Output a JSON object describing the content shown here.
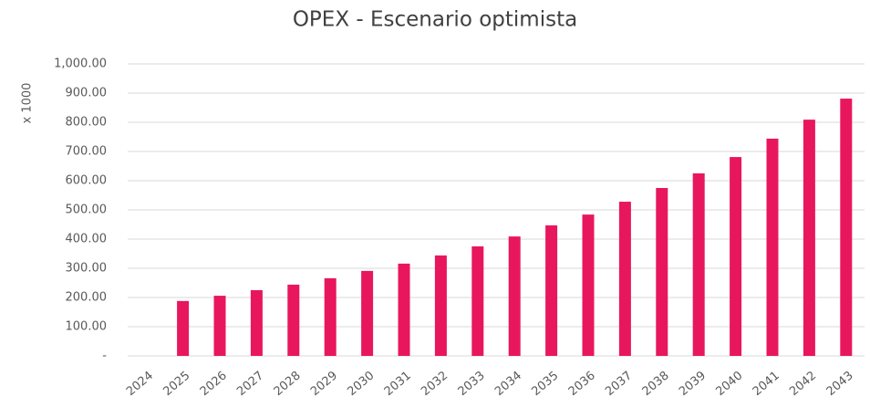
{
  "chart_data": {
    "type": "bar",
    "title": "OPEX - Escenario optimista",
    "y_label": "x 1000",
    "categories": [
      "2024",
      "2025",
      "2026",
      "2027",
      "2028",
      "2029",
      "2030",
      "2031",
      "2032",
      "2033",
      "2034",
      "2035",
      "2036",
      "2037",
      "2038",
      "2039",
      "2040",
      "2041",
      "2042",
      "2043"
    ],
    "values": [
      0,
      188,
      206,
      225,
      244,
      266,
      291,
      316,
      344,
      375,
      409,
      447,
      484,
      528,
      575,
      625,
      681,
      744,
      809,
      881
    ],
    "color": "#e8175d",
    "ylim": [
      0,
      1000
    ],
    "yticks": [
      {
        "value": 0,
        "label": "-"
      },
      {
        "value": 100,
        "label": "100.00"
      },
      {
        "value": 200,
        "label": "200.00"
      },
      {
        "value": 300,
        "label": "300.00"
      },
      {
        "value": 400,
        "label": "400.00"
      },
      {
        "value": 500,
        "label": "500.00"
      },
      {
        "value": 600,
        "label": "600.00"
      },
      {
        "value": 700,
        "label": "700.00"
      },
      {
        "value": 800,
        "label": "800.00"
      },
      {
        "value": 900,
        "label": "900.00"
      },
      {
        "value": 1000,
        "label": "1,000.00"
      }
    ],
    "grid": true
  }
}
